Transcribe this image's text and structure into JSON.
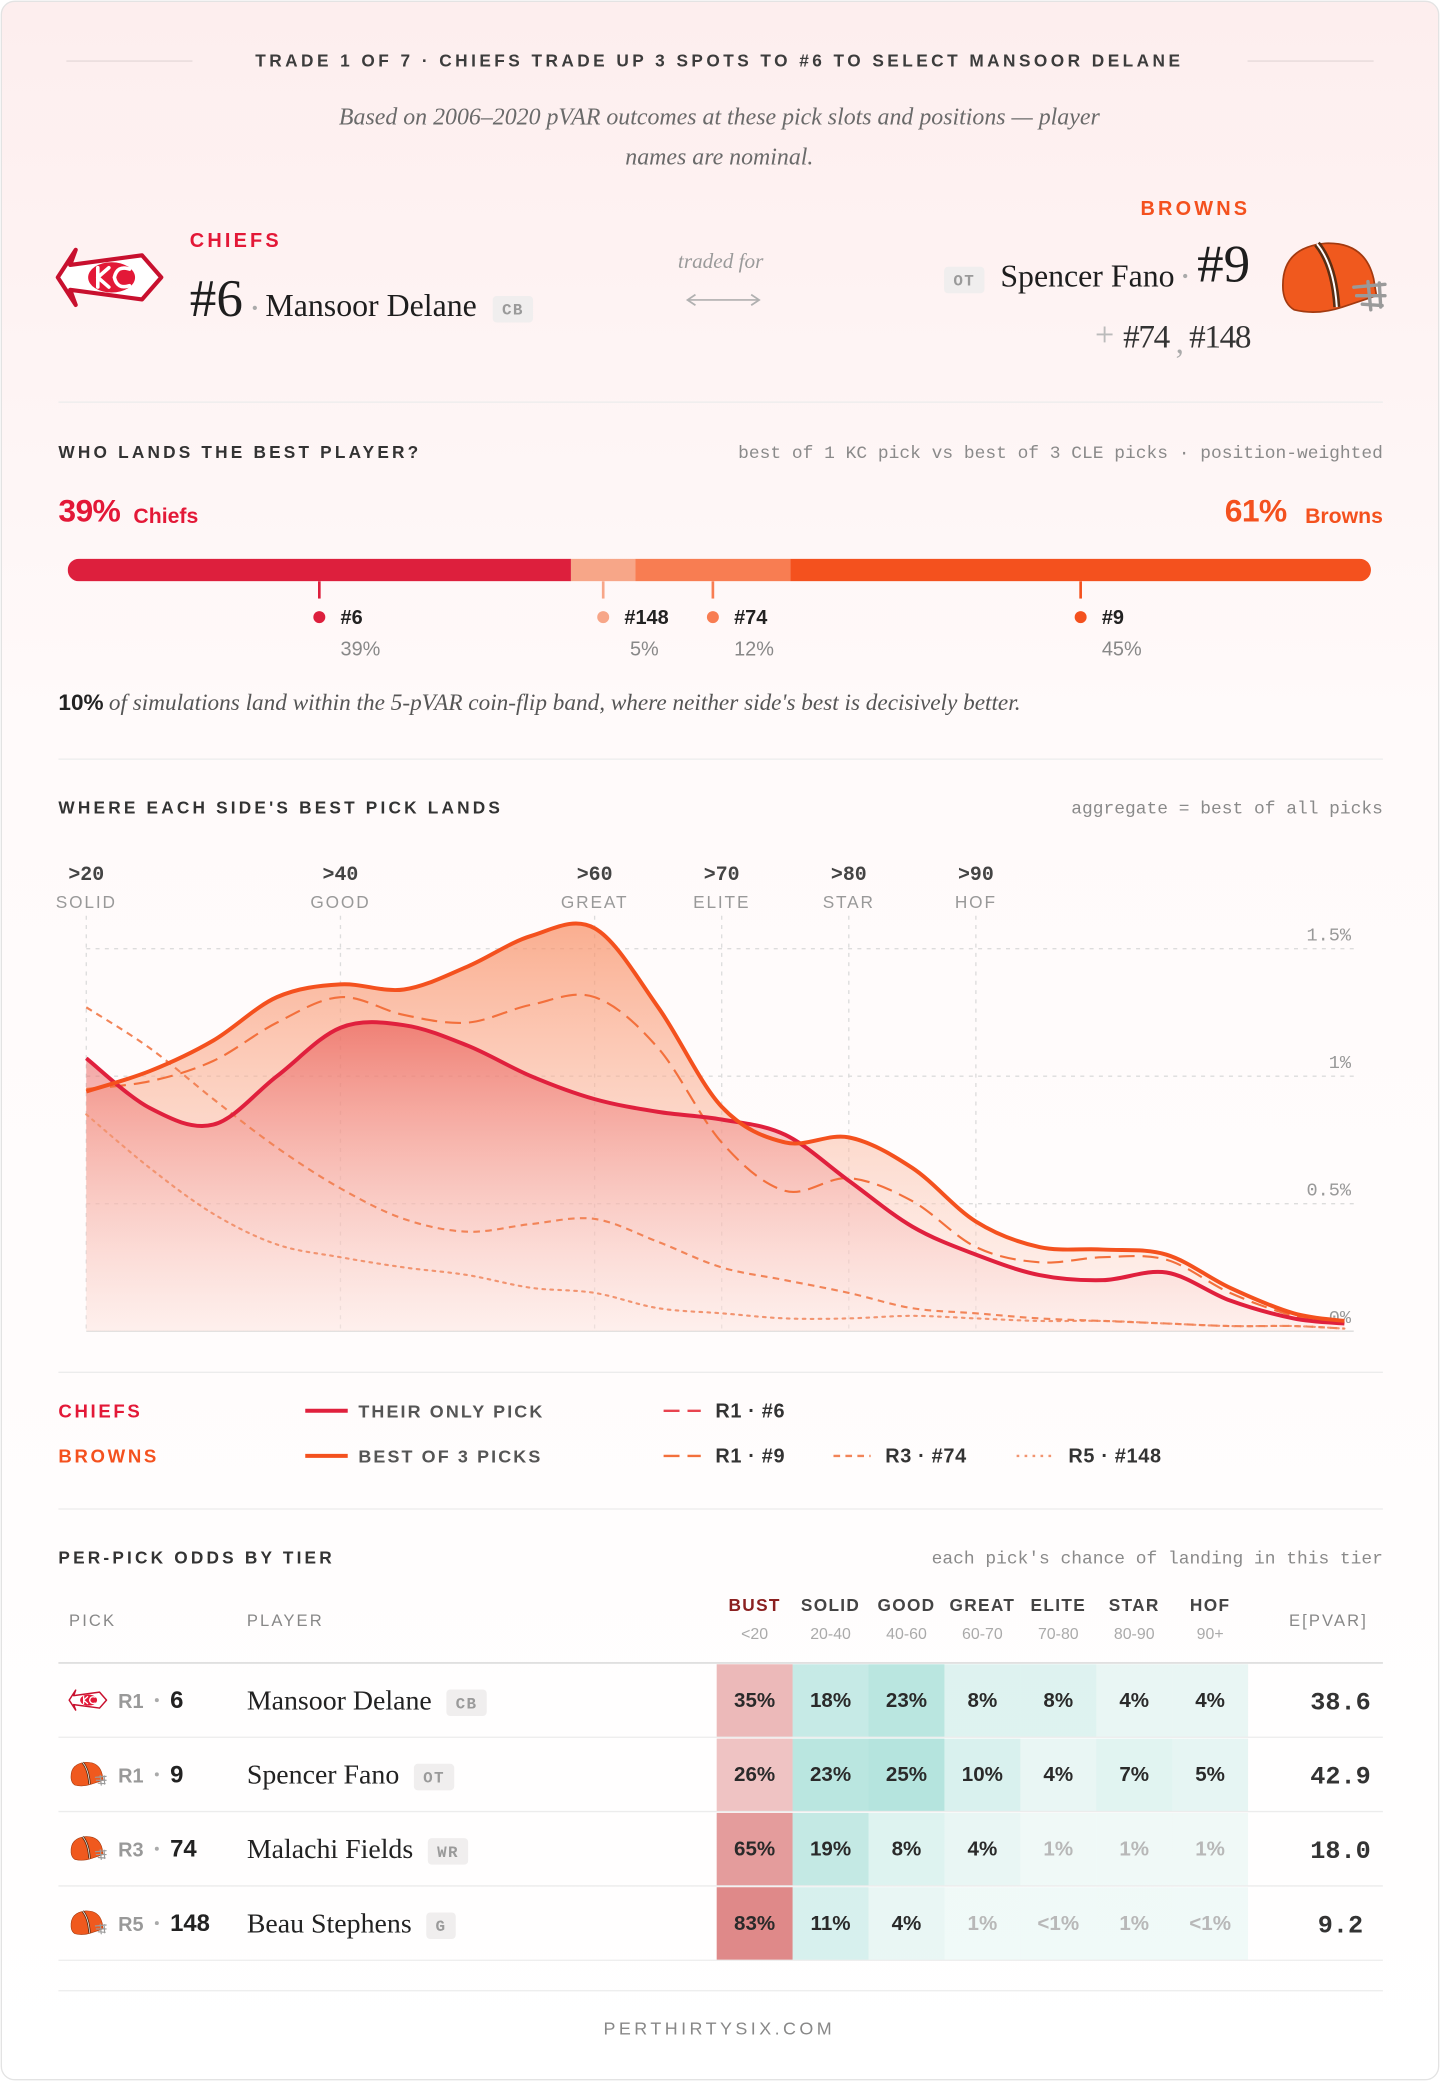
{
  "header": {
    "title": "TRADE 1 OF 7 · CHIEFS TRADE UP 3 SPOTS TO #6 TO SELECT MANSOOR DELANE",
    "subtitle": "Based on 2006–2020 pVAR outcomes at these pick slots and positions — player names are nominal."
  },
  "trade": {
    "left": {
      "team": "CHIEFS",
      "pick": "#6",
      "player": "Mansoor Delane",
      "position": "CB"
    },
    "note": "traded for",
    "right": {
      "team": "BROWNS",
      "pick": "#9",
      "player": "Spencer Fano",
      "position": "OT",
      "extras": [
        "#74",
        "#148"
      ],
      "extras_separator": ","
    }
  },
  "best_player": {
    "title": "WHO LANDS THE BEST PLAYER?",
    "note": "best of 1 KC pick vs best of 3 CLE picks · position-weighted",
    "chiefs": {
      "share": "39%",
      "name": "Chiefs"
    },
    "browns": {
      "share": "61%",
      "name": "Browns"
    },
    "segments": [
      {
        "name": "#6",
        "value": 39,
        "label": "39%",
        "color": "#dd1f3d"
      },
      {
        "name": "#148",
        "value": 5,
        "label": "5%",
        "color": "#f7a688"
      },
      {
        "name": "#74",
        "value": 12,
        "label": "12%",
        "color": "#f87d52"
      },
      {
        "name": "#9",
        "value": 45,
        "label": "45%",
        "color": "#f4511e"
      }
    ],
    "footnote": {
      "lead": "10%",
      "text": "of simulations land within the 5-pVAR coin-flip band, where neither side's best is decisively better."
    }
  },
  "chart_data": {
    "type": "line",
    "title": "WHERE EACH SIDE'S BEST PICK LANDS",
    "note": "aggregate = best of all picks",
    "x": [
      20,
      25,
      30,
      35,
      40,
      45,
      50,
      55,
      60,
      65,
      70,
      75,
      80,
      85,
      90,
      95,
      100,
      105,
      110,
      115,
      119
    ],
    "xlim": [
      20,
      119
    ],
    "xticks": [
      {
        "value": 20,
        "label": ">20"
      },
      {
        "value": 40,
        "label": ">40"
      },
      {
        "value": 60,
        "label": ">60"
      },
      {
        "value": 70,
        "label": ">70"
      },
      {
        "value": 80,
        "label": ">80"
      },
      {
        "value": 90,
        "label": ">90"
      }
    ],
    "tiers": [
      "SOLID",
      "GOOD",
      "GREAT",
      "ELITE",
      "STAR",
      "HOF"
    ],
    "ylim": [
      0,
      1.65
    ],
    "yticks": [
      {
        "value": 0,
        "label": "0%"
      },
      {
        "value": 0.5,
        "label": "0.5%"
      },
      {
        "value": 1,
        "label": "1%"
      },
      {
        "value": 1.5,
        "label": "1.5%"
      }
    ],
    "grid": true,
    "legend_groups": [
      {
        "name": "CHIEFS",
        "color": "#e31837"
      },
      {
        "name": "BROWNS",
        "color": "#f4511e"
      }
    ],
    "series": [
      {
        "name": "THEIR ONLY PICK",
        "group": 0,
        "color": "#e0203d",
        "dash": "solid",
        "area": true,
        "values": [
          1.07,
          0.875,
          0.81,
          1.0,
          1.19,
          1.2,
          1.12,
          1.0,
          0.91,
          0.86,
          0.83,
          0.77,
          0.59,
          0.41,
          0.3,
          0.22,
          0.2,
          0.23,
          0.12,
          0.05,
          0.03
        ]
      },
      {
        "name": "BEST OF 3 PICKS",
        "group": 1,
        "color": "#f4511e",
        "dash": "solid",
        "area": true,
        "values": [
          0.94,
          1.02,
          1.14,
          1.31,
          1.36,
          1.34,
          1.43,
          1.55,
          1.58,
          1.27,
          0.88,
          0.74,
          0.76,
          0.64,
          0.43,
          0.33,
          0.32,
          0.3,
          0.17,
          0.07,
          0.04
        ]
      },
      {
        "name": "R1 · #6",
        "group": 0,
        "color": "#e8434f",
        "dash": "long-dash",
        "area": false,
        "values": [
          1.07,
          0.875,
          0.81,
          1.0,
          1.19,
          1.2,
          1.12,
          1.0,
          0.91,
          0.86,
          0.83,
          0.77,
          0.59,
          0.41,
          0.3,
          0.22,
          0.2,
          0.23,
          0.12,
          0.05,
          0.03
        ]
      },
      {
        "name": "R1 · #9",
        "group": 1,
        "color": "#f3703c",
        "dash": "long-dash",
        "area": false,
        "values": [
          0.95,
          0.98,
          1.06,
          1.21,
          1.31,
          1.24,
          1.21,
          1.28,
          1.31,
          1.11,
          0.74,
          0.55,
          0.6,
          0.51,
          0.33,
          0.27,
          0.29,
          0.28,
          0.15,
          0.06,
          0.03
        ]
      },
      {
        "name": "R3 · #74",
        "group": 1,
        "color": "#f28458",
        "dash": "dash",
        "area": false,
        "values": [
          1.27,
          1.11,
          0.91,
          0.72,
          0.56,
          0.44,
          0.39,
          0.42,
          0.44,
          0.35,
          0.25,
          0.2,
          0.15,
          0.09,
          0.07,
          0.05,
          0.04,
          0.03,
          0.02,
          0.02,
          0.01
        ]
      },
      {
        "name": "R5 · #148",
        "group": 1,
        "color": "#f29470",
        "dash": "dot",
        "area": false,
        "values": [
          0.85,
          0.64,
          0.46,
          0.34,
          0.29,
          0.25,
          0.22,
          0.17,
          0.15,
          0.09,
          0.07,
          0.05,
          0.05,
          0.06,
          0.05,
          0.04,
          0.04,
          0.03,
          0.02,
          0.02,
          0.01
        ]
      }
    ]
  },
  "table": {
    "title": "PER-PICK ODDS BY TIER",
    "note": "each pick's chance of landing in this tier",
    "pick_header": "PICK",
    "player_header": "PLAYER",
    "value_header": "E[PVAR]",
    "tiers": [
      {
        "name": "BUST",
        "range": "<20"
      },
      {
        "name": "SOLID",
        "range": "20-40"
      },
      {
        "name": "GOOD",
        "range": "40-60"
      },
      {
        "name": "GREAT",
        "range": "60-70"
      },
      {
        "name": "ELITE",
        "range": "70-80"
      },
      {
        "name": "STAR",
        "range": "80-90"
      },
      {
        "name": "HOF",
        "range": "90+"
      }
    ],
    "rows": [
      {
        "logo": "chiefs",
        "round": "R1",
        "pick": "6",
        "player": "Mansoor Delane",
        "position": "CB",
        "odds": [
          35,
          18,
          23,
          8,
          8,
          4,
          4
        ],
        "odds_labels": [
          "35%",
          "18%",
          "23%",
          "8%",
          "8%",
          "4%",
          "4%"
        ],
        "epvar": "38.6"
      },
      {
        "logo": "browns",
        "round": "R1",
        "pick": "9",
        "player": "Spencer Fano",
        "position": "OT",
        "odds": [
          26,
          23,
          25,
          10,
          4,
          7,
          5
        ],
        "odds_labels": [
          "26%",
          "23%",
          "25%",
          "10%",
          "4%",
          "7%",
          "5%"
        ],
        "epvar": "42.9"
      },
      {
        "logo": "browns",
        "round": "R3",
        "pick": "74",
        "player": "Malachi Fields",
        "position": "WR",
        "odds": [
          65,
          19,
          8,
          4,
          1,
          1,
          1
        ],
        "odds_labels": [
          "65%",
          "19%",
          "8%",
          "4%",
          "1%",
          "1%",
          "1%"
        ],
        "epvar": "18.0"
      },
      {
        "logo": "browns",
        "round": "R5",
        "pick": "148",
        "player": "Beau Stephens",
        "position": "G",
        "odds": [
          83,
          11,
          4,
          1,
          0.5,
          1,
          0.5
        ],
        "odds_labels": [
          "83%",
          "11%",
          "4%",
          "1%",
          "<1%",
          "1%",
          "<1%"
        ],
        "epvar": "9.2"
      }
    ]
  },
  "footer": "PERTHIRTYSIX.COM"
}
